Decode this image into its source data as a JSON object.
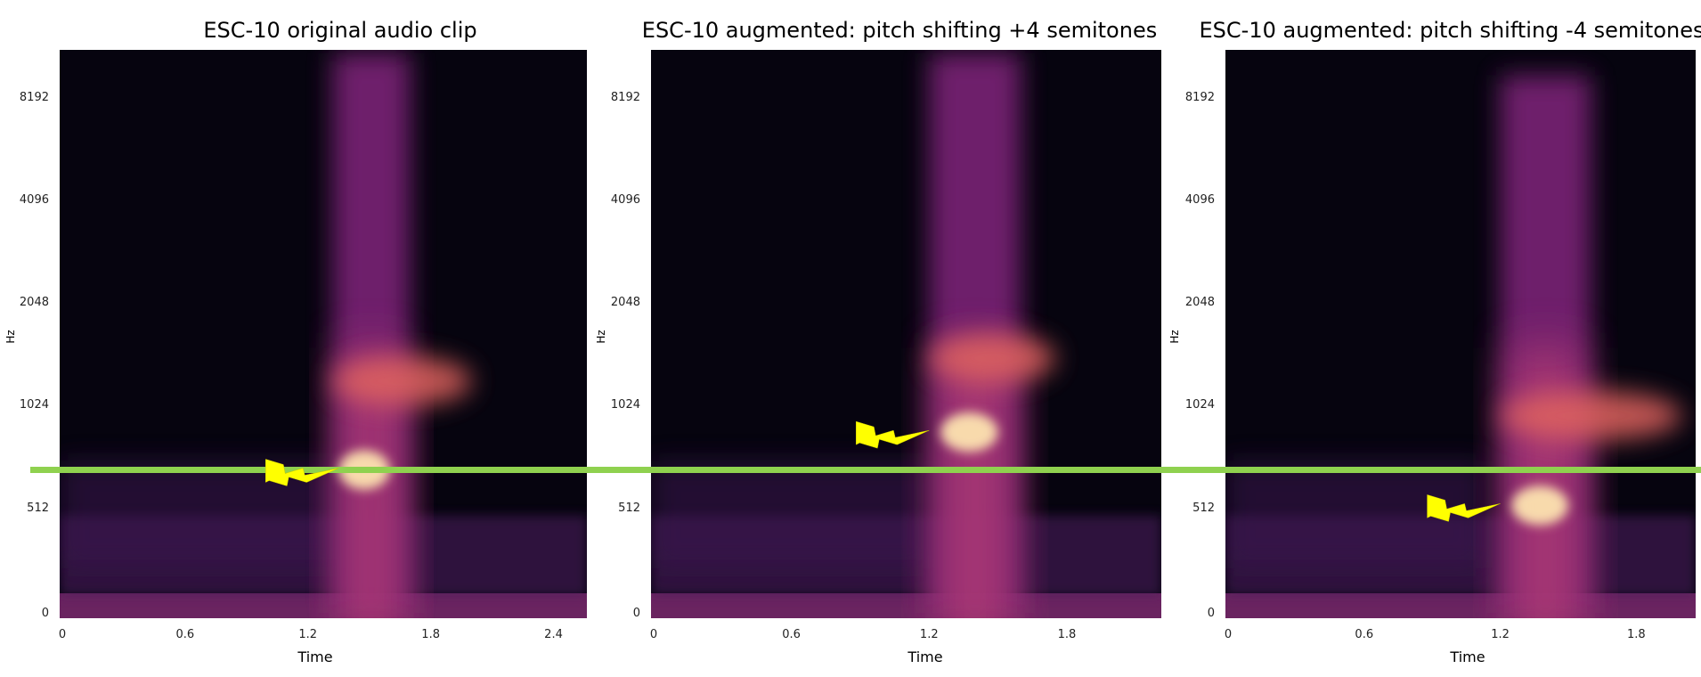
{
  "chart_data": [
    {
      "type": "heatmap",
      "title": "ESC-10 original audio clip",
      "xlabel": "Time",
      "ylabel": "Hz",
      "x_ticks": [
        "0",
        "0.6",
        "1.2",
        "1.8",
        "2.4"
      ],
      "x_tick_values": [
        0,
        0.6,
        1.2,
        1.8,
        2.4
      ],
      "xlim": [
        0,
        2.55
      ],
      "y_ticks": [
        "0",
        "512",
        "1024",
        "2048",
        "4096",
        "8192"
      ],
      "y_scale": "log-like (mel)",
      "colormap": "magma",
      "energy_bursts": [
        {
          "t_start": 1.32,
          "t_end": 1.7,
          "f_low": 0,
          "f_high": 11025,
          "strength": "strong"
        },
        {
          "t_start": 1.32,
          "t_end": 2.0,
          "f_center": 1200,
          "strength": "medium"
        },
        {
          "t_start": 1.35,
          "t_end": 1.6,
          "f_center": 660,
          "strength": "peak"
        }
      ],
      "annotation_arrow": {
        "points_to_time": 1.35,
        "points_to_freq": 660,
        "color": "#ffff00"
      }
    },
    {
      "type": "heatmap",
      "title": "ESC-10 augmented: pitch shifting +4 semitones",
      "xlabel": "Time",
      "ylabel": "Hz",
      "x_ticks": [
        "0",
        "0.6",
        "1.2",
        "1.8"
      ],
      "x_tick_values": [
        0,
        0.6,
        1.2,
        1.8
      ],
      "xlim": [
        0,
        2.2
      ],
      "y_ticks": [
        "0",
        "512",
        "1024",
        "2048",
        "4096",
        "8192"
      ],
      "y_scale": "log-like (mel)",
      "colormap": "magma",
      "energy_bursts": [
        {
          "t_start": 1.2,
          "t_end": 1.6,
          "f_low": 0,
          "f_high": 11025,
          "strength": "strong"
        },
        {
          "t_start": 1.2,
          "t_end": 1.75,
          "f_center": 1400,
          "strength": "medium"
        },
        {
          "t_start": 1.25,
          "t_end": 1.5,
          "f_center": 850,
          "strength": "peak"
        }
      ],
      "annotation_arrow": {
        "points_to_time": 1.2,
        "points_to_freq": 850,
        "color": "#ffff00"
      }
    },
    {
      "type": "heatmap",
      "title": "ESC-10 augmented: pitch shifting -4 semitones",
      "xlabel": "Time",
      "ylabel": "Hz",
      "x_ticks": [
        "0",
        "0.6",
        "1.2",
        "1.8"
      ],
      "x_tick_values": [
        0,
        0.6,
        1.2,
        1.8
      ],
      "xlim": [
        0,
        2.05
      ],
      "y_ticks": [
        "0",
        "512",
        "1024",
        "2048",
        "4096",
        "8192"
      ],
      "y_scale": "log-like (mel)",
      "colormap": "magma",
      "energy_bursts": [
        {
          "t_start": 1.2,
          "t_end": 1.6,
          "f_low": 0,
          "f_high": 9500,
          "strength": "strong"
        },
        {
          "t_start": 1.2,
          "t_end": 2.0,
          "f_center": 950,
          "strength": "medium"
        },
        {
          "t_start": 1.25,
          "t_end": 1.5,
          "f_center": 520,
          "strength": "peak"
        }
      ],
      "annotation_arrow": {
        "points_to_time": 1.2,
        "points_to_freq": 520,
        "color": "#ffff00"
      }
    }
  ],
  "reference_line": {
    "color": "#8fd14f",
    "freq_hz": 660
  }
}
